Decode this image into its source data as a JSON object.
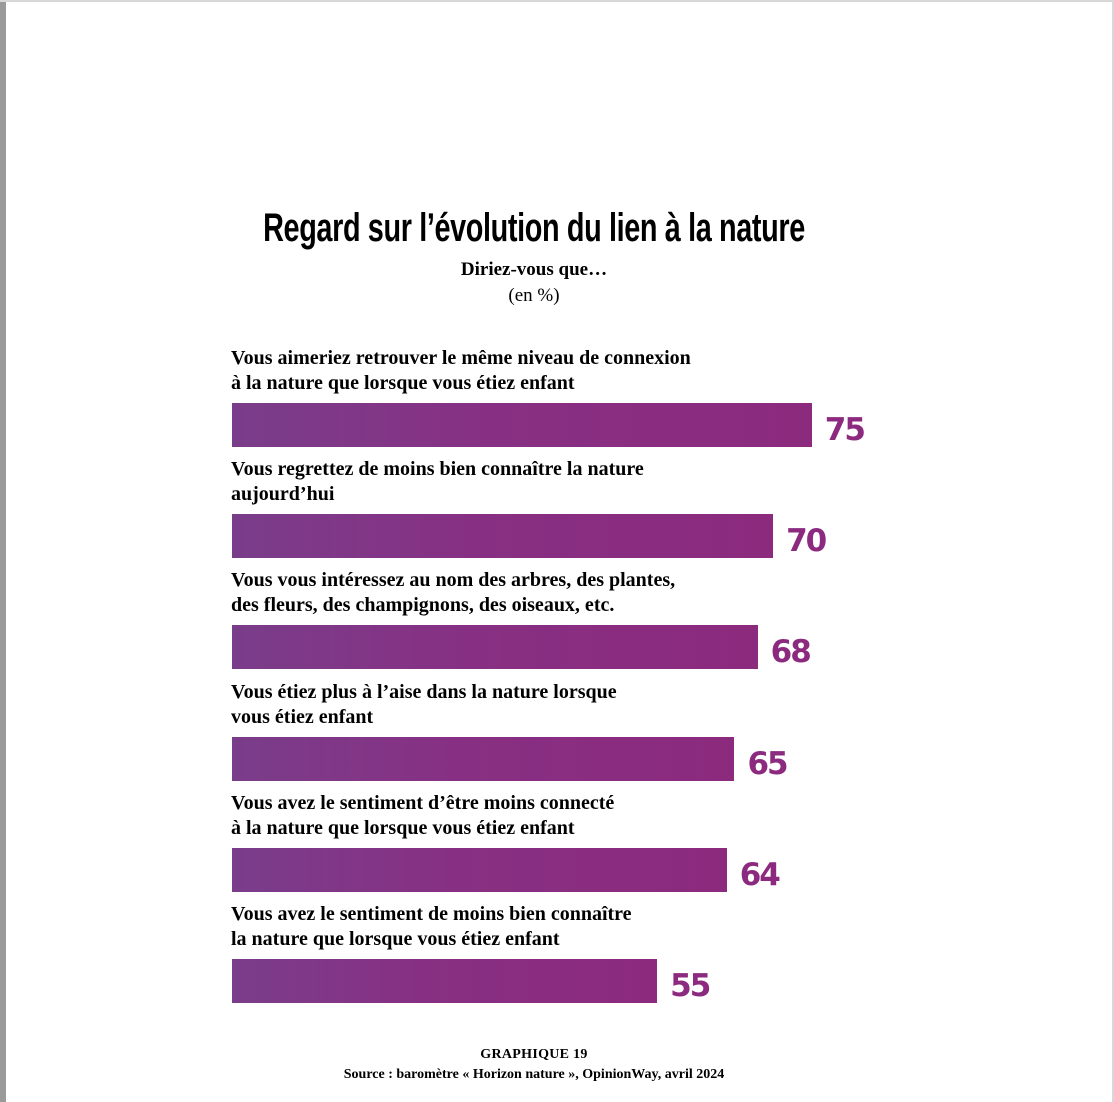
{
  "chart_data": {
    "type": "bar",
    "orientation": "horizontal",
    "title": "Regard sur l’évolution du lien à la nature",
    "subtitle": "Diriez-vous que…",
    "unit": "(en %)",
    "categories": [
      [
        "Vous aimeriez retrouver le même niveau de connexion",
        "à la nature que lorsque vous étiez enfant"
      ],
      [
        "Vous regrettez de moins bien connaître la nature",
        "aujourd’hui"
      ],
      [
        "Vous vous intéressez au nom des arbres, des plantes,",
        "des fleurs, des champignons, des oiseaux, etc."
      ],
      [
        "Vous étiez plus à l’aise dans la nature lorsque",
        "vous étiez enfant"
      ],
      [
        "Vous avez le sentiment d’être moins connecté",
        "à la nature que lorsque vous étiez enfant"
      ],
      [
        "Vous avez le sentiment de moins bien connaître",
        "la nature que lorsque vous étiez enfant"
      ]
    ],
    "values": [
      75,
      70,
      68,
      65,
      64,
      55
    ],
    "value_labels": [
      "75",
      "70",
      "68",
      "65",
      "64",
      "55"
    ],
    "xlim": [
      0,
      100
    ],
    "grid": false,
    "legend": "none",
    "bar_color_start": "#7a3d8a",
    "bar_color_end": "#8c2a7e",
    "value_color": "#8b2a7e"
  },
  "footer": {
    "figure_label": "GRAPHIQUE 19",
    "source": "Source : baromètre « Horizon nature », OpinionWay, avril 2024"
  }
}
